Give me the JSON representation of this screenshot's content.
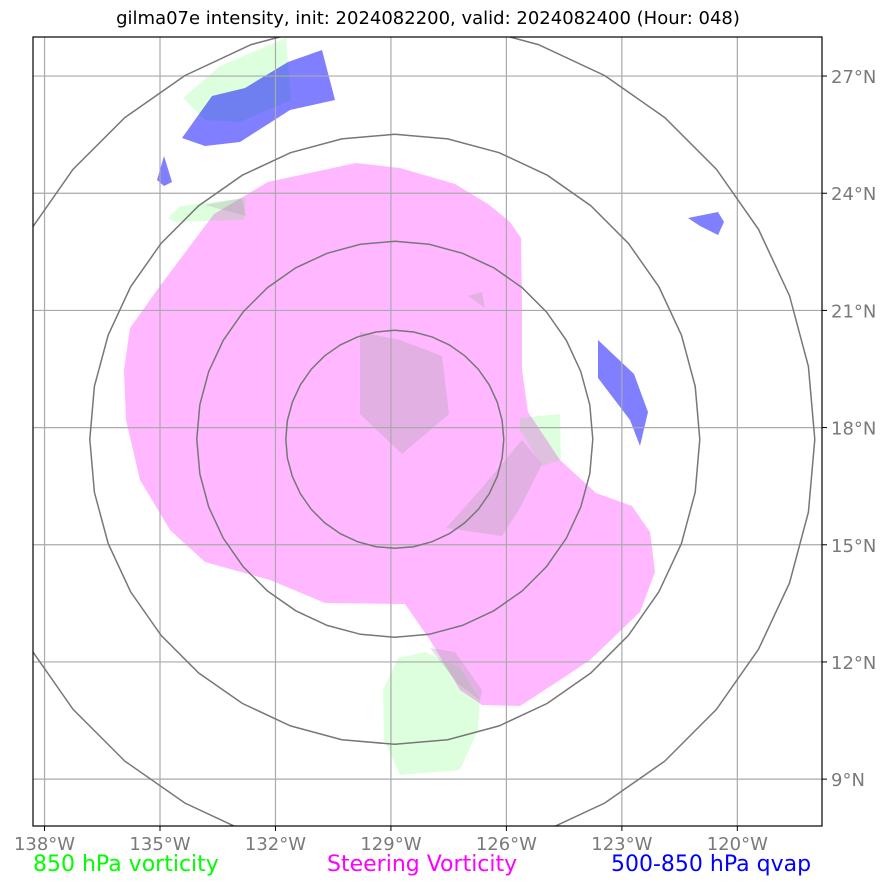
{
  "title": "gilma07e intensity, init: 2024082200, valid: 2024082400 (Hour: 048)",
  "colors": {
    "vorticity_850": "#00ff00",
    "steering_vorticity": "#ff00ff",
    "qvap_500_850": "#0000ff",
    "range_rings": "#777777",
    "grid": "#aaaaaa"
  },
  "legend": [
    {
      "label": "850 hPa vorticity",
      "color": "#00ff00"
    },
    {
      "label": "Steering Vorticity",
      "color": "#ff00ff"
    },
    {
      "label": "500-850 hPa qvap",
      "color": "#0000ff"
    }
  ],
  "map": {
    "lon_ticks": [
      "138°W",
      "135°W",
      "132°W",
      "129°W",
      "126°W",
      "123°W",
      "120°W"
    ],
    "lat_ticks": [
      "27°N",
      "24°N",
      "21°N",
      "18°N",
      "15°N",
      "12°N",
      "9°N"
    ],
    "lon_values": [
      -138,
      -135,
      -132,
      -129,
      -126,
      -123,
      -120
    ],
    "lat_values": [
      27,
      24,
      21,
      18,
      15,
      12,
      9
    ],
    "lon_range": [
      -138.3,
      -117.8
    ],
    "lat_range": [
      7.8,
      28.0
    ],
    "storm_center": {
      "lon": -128.9,
      "lat": 17.7
    }
  }
}
